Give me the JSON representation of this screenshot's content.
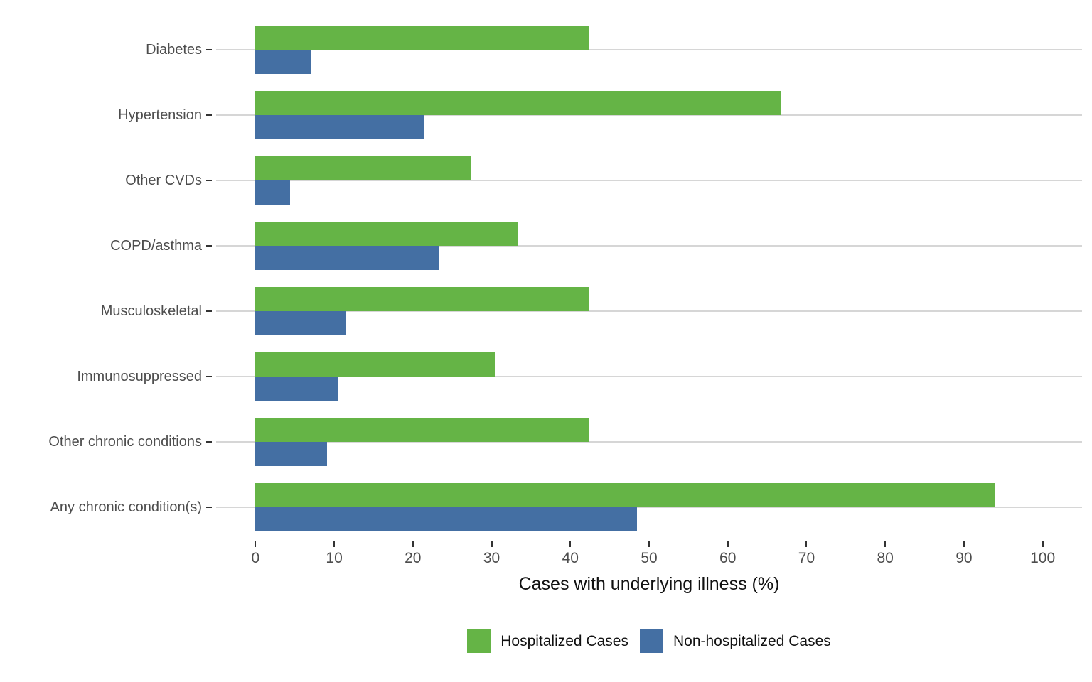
{
  "chart_data": {
    "type": "bar",
    "orientation": "horizontal",
    "title": "",
    "xlabel": "Cases with underlying illness (%)",
    "ylabel": "",
    "xlim": [
      -5,
      105
    ],
    "xticks": [
      0,
      10,
      20,
      30,
      40,
      50,
      60,
      70,
      80,
      90,
      100
    ],
    "grid": "horizontal-major",
    "legend_position": "bottom",
    "categories": [
      "Diabetes",
      "Hypertension",
      "Other CVDs",
      "COPD/asthma",
      "Musculoskeletal",
      "Immunosuppressed",
      "Other chronic conditions",
      "Any chronic condition(s)"
    ],
    "series": [
      {
        "name": "Hospitalized Cases",
        "color": "#65b446",
        "values": [
          42.4,
          66.8,
          27.3,
          33.3,
          42.4,
          30.4,
          42.4,
          93.9
        ]
      },
      {
        "name": "Non-hospitalized Cases",
        "color": "#446fa3",
        "values": [
          7.1,
          21.4,
          4.4,
          23.3,
          11.5,
          10.4,
          9.1,
          48.5
        ]
      }
    ],
    "colors": {
      "gridline": "#d6d6d6",
      "tick": "#333333",
      "axis_text": "#4d4d4d",
      "title_text": "#111111"
    }
  }
}
